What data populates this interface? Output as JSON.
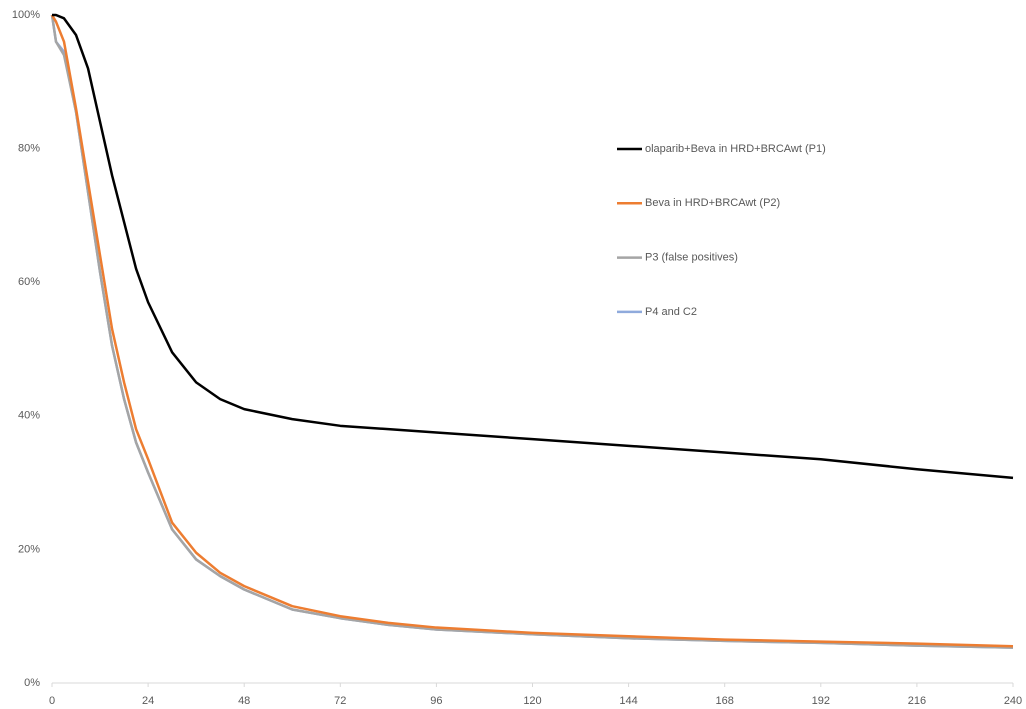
{
  "chart_data": {
    "type": "line",
    "x": [
      0,
      1,
      3,
      6,
      9,
      12,
      15,
      18,
      21,
      24,
      30,
      36,
      42,
      48,
      60,
      72,
      84,
      96,
      120,
      144,
      168,
      192,
      216,
      240
    ],
    "series": [
      {
        "name": "olaparib+Beva in HRD+BRCAwt (P1)",
        "color": "#000000",
        "values": [
          100,
          100,
          99.5,
          97,
          92,
          84,
          76,
          69,
          62,
          57,
          49.5,
          45,
          42.5,
          41,
          39.5,
          38.5,
          38,
          37.5,
          36.5,
          35.5,
          34.5,
          33.5,
          32,
          30.7
        ]
      },
      {
        "name": "Beva in HRD+BRCAwt (P2)",
        "color": "#ed7d31",
        "values": [
          100,
          99,
          96,
          86,
          75,
          64,
          53,
          45,
          38,
          33.5,
          24,
          19.5,
          16.5,
          14.5,
          11.5,
          10,
          9,
          8.3,
          7.5,
          7,
          6.5,
          6.2,
          5.9,
          5.5
        ]
      },
      {
        "name": "P3 (false positives)",
        "color": "#a5a5a5",
        "values": [
          100,
          96,
          94,
          85.5,
          73.5,
          61.5,
          50.5,
          42.5,
          36,
          31.5,
          23,
          18.5,
          16,
          14,
          11,
          9.7,
          8.7,
          8,
          7.3,
          6.7,
          6.3,
          6,
          5.6,
          5.3
        ]
      },
      {
        "name": "P4 and C2",
        "color": "#8faadc",
        "values": [
          100,
          96,
          94.5,
          85.5,
          73.5,
          61.5,
          50.5,
          42.5,
          36,
          31.5,
          23,
          18.5,
          16,
          14,
          11,
          9.7,
          8.7,
          8,
          7.3,
          6.7,
          6.3,
          6,
          5.6,
          5.3
        ]
      }
    ],
    "xlim": [
      0,
      240
    ],
    "xticks": [
      0,
      24,
      48,
      72,
      96,
      120,
      144,
      168,
      192,
      216,
      240
    ],
    "ylim": [
      0,
      100
    ],
    "yticks": [
      {
        "value": 0,
        "label": "0%"
      },
      {
        "value": 20,
        "label": "20%"
      },
      {
        "value": 40,
        "label": "40%"
      },
      {
        "value": 60,
        "label": "60%"
      },
      {
        "value": 80,
        "label": "80%"
      },
      {
        "value": 100,
        "label": "100%"
      }
    ],
    "grid": false
  }
}
